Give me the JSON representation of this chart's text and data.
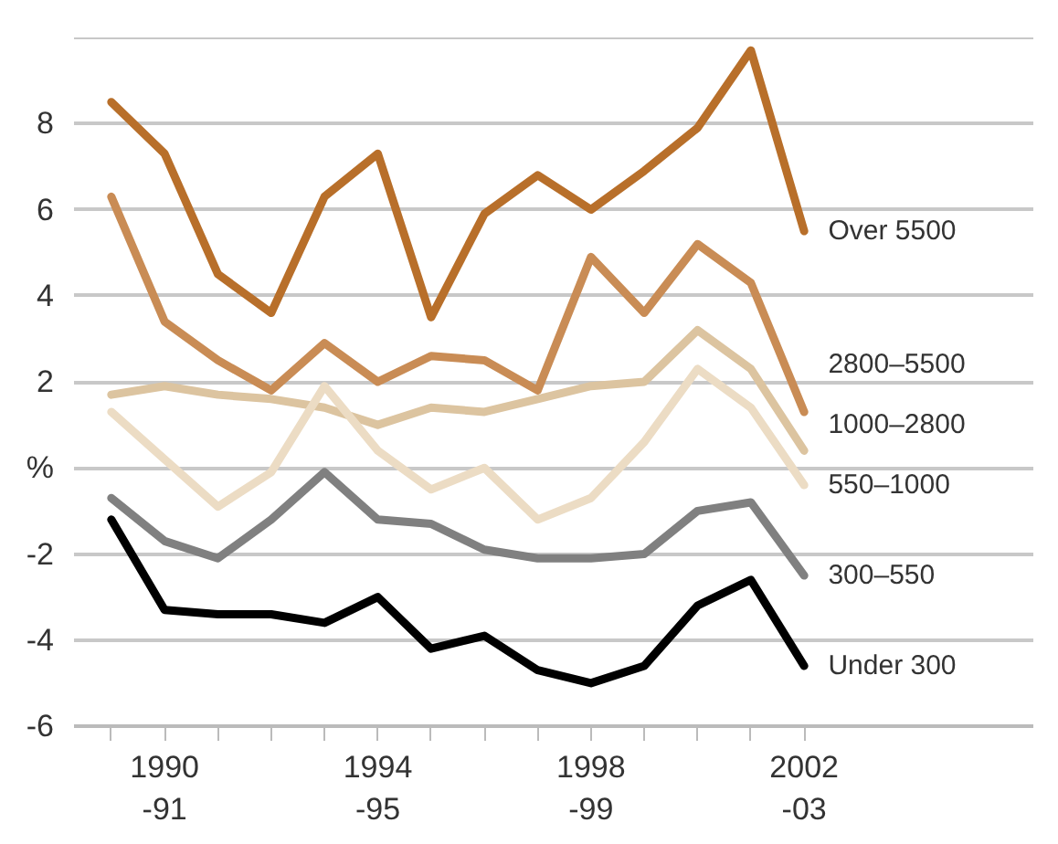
{
  "chart_data": {
    "type": "line",
    "categories": [
      null,
      "1990\n-91",
      null,
      null,
      null,
      "1994\n-95",
      null,
      null,
      null,
      "1998\n-99",
      null,
      null,
      null,
      "2002\n-03"
    ],
    "series": [
      {
        "name": "Over 5500",
        "color": "#b86f2a",
        "values": [
          8.5,
          7.3,
          4.5,
          3.6,
          6.3,
          7.3,
          3.5,
          5.9,
          6.8,
          6.0,
          6.9,
          7.9,
          9.7,
          5.5
        ]
      },
      {
        "name": "2800–5500",
        "color": "#c98c55",
        "values": [
          6.3,
          3.4,
          2.5,
          1.8,
          2.9,
          2.0,
          2.6,
          2.5,
          1.8,
          4.9,
          3.6,
          5.2,
          4.3,
          1.3
        ]
      },
      {
        "name": "1000–2800",
        "color": "#dcc4a0",
        "values": [
          1.7,
          1.9,
          1.7,
          1.6,
          1.4,
          1.0,
          1.4,
          1.3,
          1.6,
          1.9,
          2.0,
          3.2,
          2.3,
          0.4
        ]
      },
      {
        "name": "550–1000",
        "color": "#ecdcc4",
        "values": [
          1.3,
          0.2,
          -0.9,
          -0.1,
          1.9,
          0.4,
          -0.5,
          0.0,
          -1.2,
          -0.7,
          0.6,
          2.3,
          1.4,
          -0.4
        ]
      },
      {
        "name": "300–550",
        "color": "#808080",
        "values": [
          -0.7,
          -1.7,
          -2.1,
          -1.2,
          -0.1,
          -1.2,
          -1.3,
          -1.9,
          -2.1,
          -2.1,
          -2.0,
          -1.0,
          -0.8,
          -2.5
        ]
      },
      {
        "name": "Under 300",
        "color": "#000000",
        "values": [
          -1.2,
          -3.3,
          -3.4,
          -3.4,
          -3.6,
          -3.0,
          -4.2,
          -3.9,
          -4.7,
          -5.0,
          -4.6,
          -3.2,
          -2.6,
          -4.6
        ]
      }
    ],
    "ylim": [
      -6,
      10
    ],
    "yticks": [
      -6,
      -4,
      -2,
      {
        "value": 0,
        "label": "%"
      },
      2,
      4,
      6,
      8,
      {
        "value": 10,
        "label": null
      }
    ],
    "grid": "y",
    "marker": "none",
    "line_style": "solid"
  }
}
